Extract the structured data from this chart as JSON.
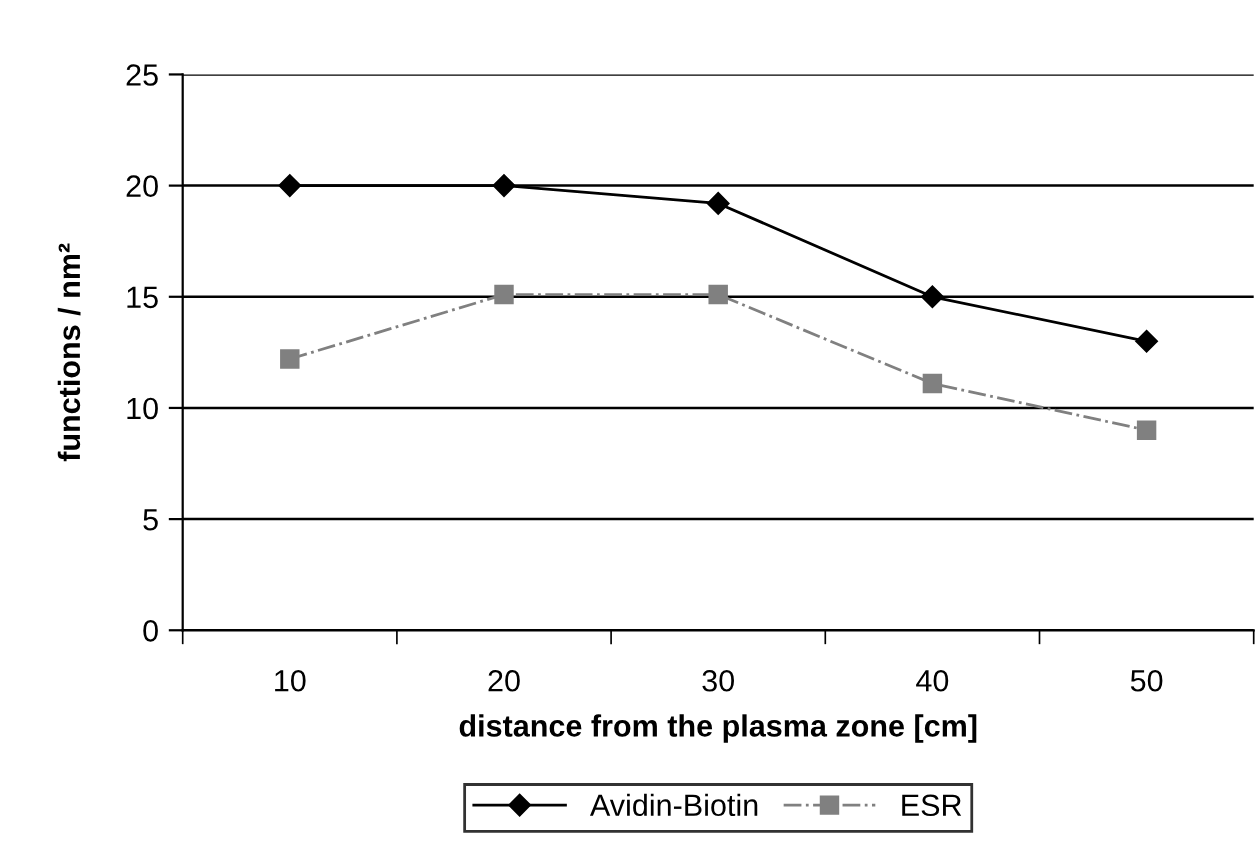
{
  "chart_data": {
    "type": "line",
    "xlabel": "distance from the plasma zone [cm]",
    "ylabel": "functions / nm²",
    "categories": [
      "10",
      "20",
      "30",
      "40",
      "50"
    ],
    "series": [
      {
        "name": "Avidin-Biotin",
        "color": "#000000",
        "marker": "diamond",
        "line_style": "solid",
        "values": [
          20,
          20,
          19.2,
          15,
          13
        ]
      },
      {
        "name": "ESR",
        "color": "#808080",
        "marker": "square",
        "line_style": "dashdot",
        "values": [
          12.2,
          15.1,
          15.1,
          11.1,
          9
        ]
      }
    ],
    "ylim": [
      0,
      25
    ],
    "yticks": [
      0,
      5,
      10,
      15,
      20,
      25
    ],
    "grid": "y",
    "legend": "bottom"
  }
}
